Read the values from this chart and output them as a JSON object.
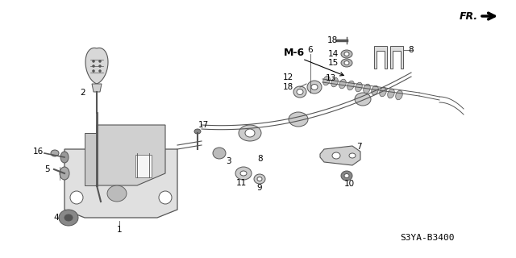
{
  "bg_color": "#ffffff",
  "diagram_id": "S3YA-B3400",
  "lc": "#555555",
  "tc": "#000000",
  "fs": 7.5
}
